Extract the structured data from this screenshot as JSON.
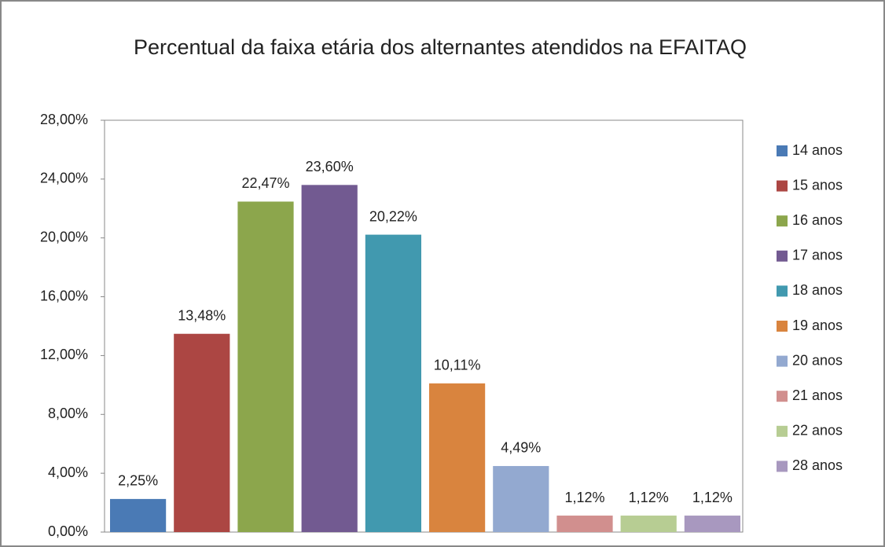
{
  "chart_data": {
    "type": "bar",
    "title": "Percentual da faixa etária dos alternantes atendidos na EFAITAQ",
    "series": [
      {
        "name": "14 anos",
        "color": "#4a7ab5",
        "values": [
          2.25
        ],
        "value_labels": [
          "2,25%"
        ]
      },
      {
        "name": "15 anos",
        "color": "#ac4643",
        "values": [
          13.48
        ],
        "value_labels": [
          "13,48%"
        ]
      },
      {
        "name": "16 anos",
        "color": "#8ca64c",
        "values": [
          22.47
        ],
        "value_labels": [
          "22,47%"
        ]
      },
      {
        "name": "17 anos",
        "color": "#725a91",
        "values": [
          23.6
        ],
        "value_labels": [
          "23,60%"
        ]
      },
      {
        "name": "18 anos",
        "color": "#4199af",
        "values": [
          20.22
        ],
        "value_labels": [
          "20,22%"
        ]
      },
      {
        "name": "19 anos",
        "color": "#d9843e",
        "values": [
          10.11
        ],
        "value_labels": [
          "10,11%"
        ]
      },
      {
        "name": "20 anos",
        "color": "#93a9d0",
        "values": [
          4.49
        ],
        "value_labels": [
          "4,49%"
        ]
      },
      {
        "name": "21 anos",
        "color": "#d18f8e",
        "values": [
          1.12
        ],
        "value_labels": [
          "1,12%"
        ]
      },
      {
        "name": "22 anos",
        "color": "#b7cd93",
        "values": [
          1.12
        ],
        "value_labels": [
          "1,12%"
        ]
      },
      {
        "name": "28 anos",
        "color": "#a898bf",
        "values": [
          1.12
        ],
        "value_labels": [
          "1,12%"
        ]
      }
    ],
    "ylim": [
      0,
      28
    ],
    "yticks": [
      {
        "value": 0,
        "label": "0,00%"
      },
      {
        "value": 4,
        "label": "4,00%"
      },
      {
        "value": 8,
        "label": "8,00%"
      },
      {
        "value": 12,
        "label": "12,00%"
      },
      {
        "value": 16,
        "label": "16,00%"
      },
      {
        "value": 20,
        "label": "20,00%"
      },
      {
        "value": 24,
        "label": "24,00%"
      },
      {
        "value": 28,
        "label": "28,00%"
      }
    ],
    "legend": "right"
  }
}
